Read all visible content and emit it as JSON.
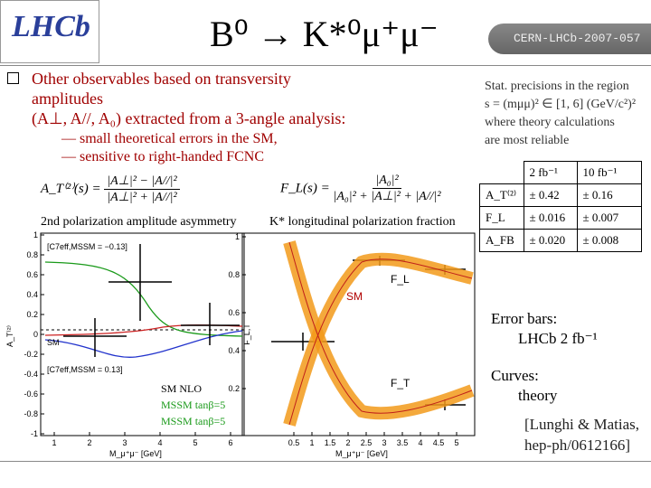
{
  "header": {
    "logo": "LHCb",
    "title": "B⁰ → K*⁰μ⁺μ⁻",
    "tag": "CERN-LHCb-2007-057"
  },
  "bullet": {
    "lines": [
      "Other observables based on transversity",
      "amplitudes",
      "(A⊥, A//, A₀) extracted from a 3-angle analysis:"
    ],
    "subs": [
      "— small theoretical errors in the SM,",
      "— sensitive to right-handed FCNC"
    ]
  },
  "formulas": [
    {
      "lhs": "A_T⁽²⁾(s) =",
      "num": "|A⊥|² − |A//|²",
      "den": "|A⊥|² + |A//|²",
      "label": "2nd polarization amplitude asymmetry"
    },
    {
      "lhs": "F_L(s) =",
      "num": "|A₀|²",
      "den": "|A₀|² + |A⊥|² + |A//|²",
      "label": "K* longitudinal polarization fraction"
    }
  ],
  "note": [
    "Stat. precisions in the region",
    "s = (mμμ)² ∈ [1, 6] (GeV/c²)²",
    "where theory calculations",
    "are most reliable"
  ],
  "table": {
    "header": [
      "2 fb⁻¹",
      "10 fb⁻¹"
    ],
    "rows": [
      [
        "A_T⁽²⁾",
        "± 0.42",
        "± 0.16"
      ],
      [
        "F_L",
        "± 0.016",
        "± 0.007"
      ],
      [
        "A_FB",
        "± 0.020",
        "± 0.008"
      ]
    ]
  },
  "left_plot": {
    "ylabel": "A_T⁽²⁾",
    "xlabel": "M_μ⁺μ⁻ [GeV]",
    "yticks": [
      -1,
      -0.8,
      -0.6,
      -0.4,
      -0.2,
      0,
      0.2,
      0.4,
      0.6,
      0.8,
      1
    ],
    "xticks": [
      1,
      2,
      3,
      4,
      5,
      6
    ],
    "boxes": [
      "[C7eff,MSSM = −0.13]",
      "SM",
      "[C7eff,MSSM = 0.13]"
    ],
    "legend": [
      "SM NLO",
      "MSSM tanβ=5",
      "MSSM tanβ=5"
    ]
  },
  "right_plot": {
    "ylabel": "F_L,T",
    "xlabel": "M_μ⁺μ⁻ [GeV]",
    "yticks": [
      0.2,
      0.4,
      0.6,
      0.8,
      1
    ],
    "xticks": [
      0.5,
      1,
      1.5,
      2,
      2.5,
      3,
      3.5,
      4,
      4.5,
      5
    ],
    "labels": [
      "F_L",
      "F_T",
      "SM"
    ]
  },
  "side": {
    "errors": [
      "Error bars:",
      "LHCb 2 fb⁻¹"
    ],
    "curves": [
      "Curves:",
      "theory"
    ],
    "ref": [
      "[Lunghi & Matias,",
      "hep-ph/0612166]"
    ]
  }
}
